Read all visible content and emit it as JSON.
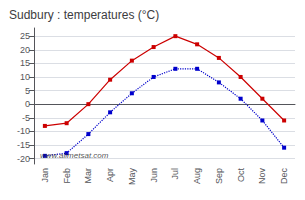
{
  "chart_data": {
    "type": "line",
    "title": "Sudbury : temperatures (°C)",
    "categories": [
      "Jan",
      "Feb",
      "Mar",
      "Apr",
      "May",
      "Jun",
      "Jul",
      "Aug",
      "Sep",
      "Oct",
      "Nov",
      "Dec"
    ],
    "series": [
      {
        "color": "#cc0000",
        "values": [
          -8,
          -7,
          0,
          9,
          16,
          21,
          25,
          22,
          17,
          10,
          2,
          -6
        ],
        "marker": "square",
        "line_style": "solid"
      },
      {
        "color": "#0000cc",
        "values": [
          -19,
          -18,
          -11,
          -3,
          4,
          10,
          13,
          13,
          8,
          2,
          -6,
          -16
        ],
        "marker": "square",
        "line_style": "dotted"
      }
    ],
    "ylim": [
      -22,
      28
    ],
    "yticks": [
      -20,
      -15,
      -10,
      -5,
      0,
      5,
      10,
      15,
      20,
      25
    ],
    "grid": true,
    "annotations": [
      "www.allmetsat.com"
    ]
  }
}
